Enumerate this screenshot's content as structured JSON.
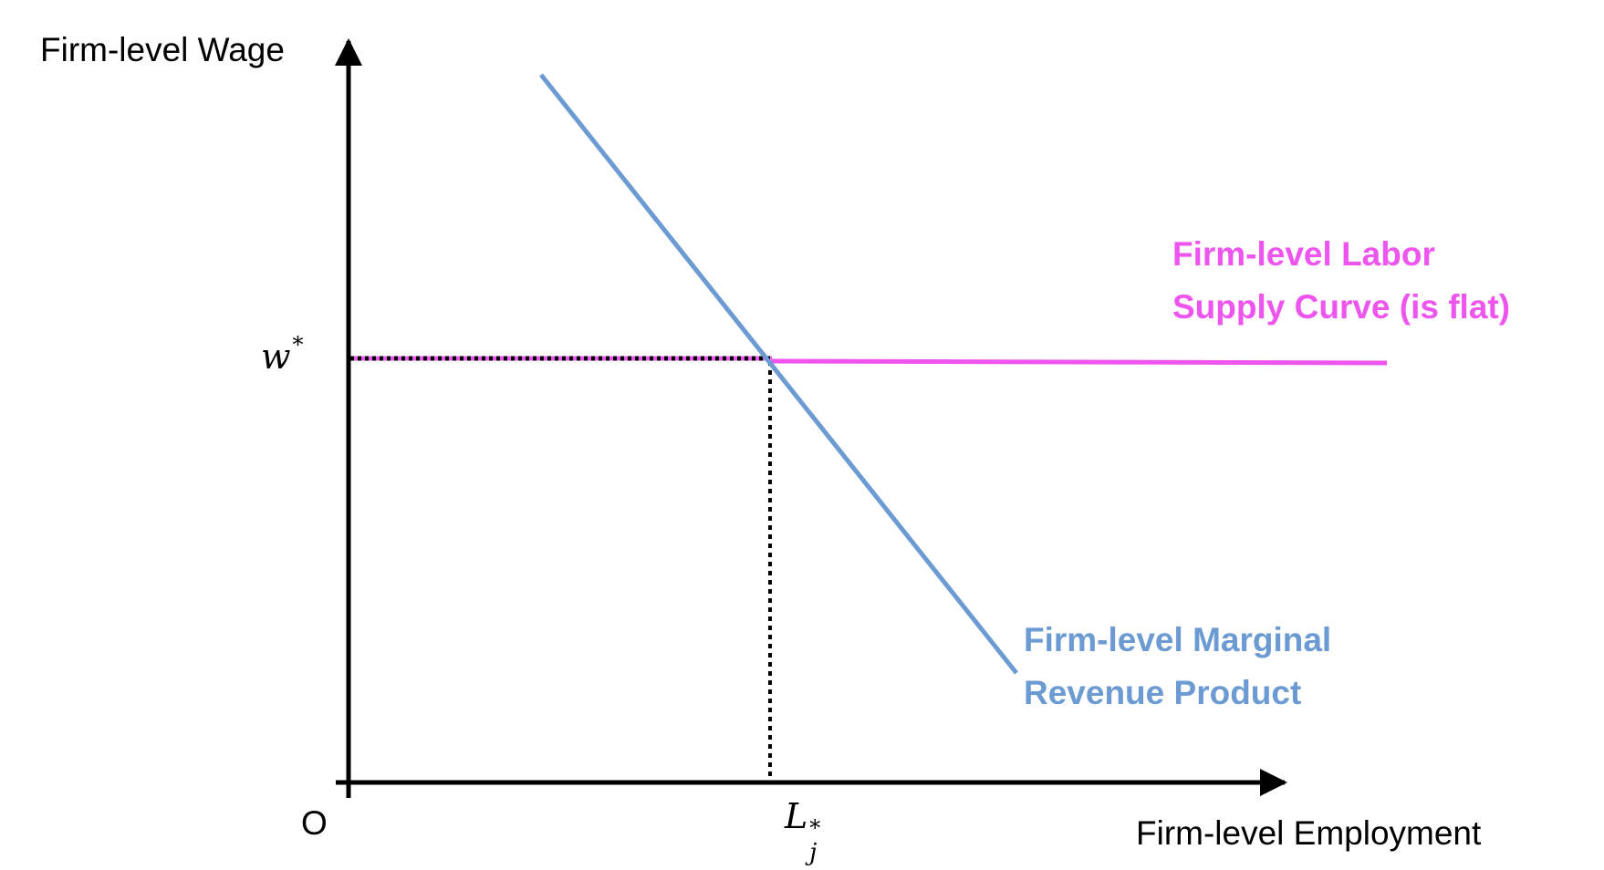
{
  "labels": {
    "y_axis": "Firm-level Wage",
    "x_axis": "Firm-level Employment",
    "origin": "O",
    "wage_symbol": "w",
    "wage_superscript": "*",
    "employment_symbol": "L",
    "employment_subscript": "j",
    "employment_superscript": "*"
  },
  "curves": {
    "supply": {
      "line1": "Firm-level Labor",
      "line2": "Supply Curve (is flat)",
      "color": "#ee55ee"
    },
    "mrp": {
      "line1": "Firm-level Marginal",
      "line2": "Revenue Product",
      "color": "#6b9bd2"
    }
  },
  "colors": {
    "axis": "#000000",
    "guide": "#000000"
  }
}
